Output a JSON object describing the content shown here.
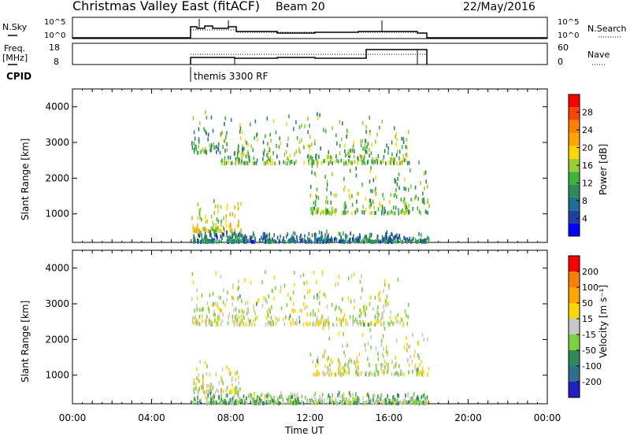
{
  "header": {
    "station": "Christmas Valley East (fitACF)",
    "beam": "Beam 20",
    "date": "22/May/2016"
  },
  "nsky_panel": {
    "left_label": "N.Sky",
    "right_label": "N.Search",
    "left_ticks": [
      "10^5",
      "10^0"
    ],
    "right_ticks": [
      "10^5",
      "10^0"
    ]
  },
  "freq_panel": {
    "left_label": "Freq.",
    "left_unit": "[MHz]",
    "right_label": "Nave",
    "left_ticks": [
      "18",
      "8"
    ],
    "right_ticks": [
      "60",
      "0"
    ]
  },
  "cpid": {
    "label": "CPID",
    "program": "themis 3300 RF"
  },
  "power_panel": {
    "ylabel": "Slant Range [km]",
    "yticks": [
      "4000",
      "3000",
      "2000",
      "1000"
    ],
    "colorbar_label": "Power [dB]",
    "colorbar_ticks": [
      "28",
      "24",
      "20",
      "16",
      "12",
      "8",
      "4"
    ],
    "colors": [
      "#0000ff",
      "#2040a0",
      "#1e6e96",
      "#2e8b57",
      "#3cb43c",
      "#9acd32",
      "#ffd700",
      "#ffa500",
      "#ff7f00",
      "#ff4500",
      "#ff0000"
    ]
  },
  "velocity_panel": {
    "ylabel": "Slant Range [km]",
    "yticks": [
      "4000",
      "3000",
      "2000",
      "1000"
    ],
    "colorbar_label": "Velocity [m s⁻¹]",
    "colorbar_ticks": [
      "200",
      "100",
      "50",
      "15",
      "-15",
      "-50",
      "-100",
      "-200"
    ],
    "colors": [
      "#2020c0",
      "#2e6e8e",
      "#2e8b57",
      "#7cd23c",
      "#c8c8c8",
      "#ffd700",
      "#ffa500",
      "#ff7f00",
      "#ff0000"
    ]
  },
  "x_axis": {
    "label": "Time UT",
    "ticks": [
      "00:00",
      "04:00",
      "08:00",
      "12:00",
      "16:00",
      "20:00",
      "00:00"
    ]
  },
  "chart_data": {
    "type": "heatmap",
    "title": "Christmas Valley East (fitACF) Beam 20 22/May/2016",
    "xlabel": "Time UT",
    "ylabel": "Slant Range [km]",
    "xlim": [
      "00:00",
      "24:00"
    ],
    "ylim": [
      200,
      4500
    ],
    "data_window": [
      "06:00",
      "18:00"
    ],
    "series": [
      {
        "name": "Power [dB]",
        "clim": [
          0,
          32
        ],
        "echo_regions": [
          {
            "t": [
              "06:00",
              "07:30"
            ],
            "range_km": [
              2700,
              3900
            ],
            "value": 12
          },
          {
            "t": [
              "07:30",
              "17:00"
            ],
            "range_km": [
              2400,
              3800
            ],
            "value": 14
          },
          {
            "t": [
              "06:00",
              "08:30"
            ],
            "range_km": [
              500,
              1400
            ],
            "value": 18
          },
          {
            "t": [
              "12:00",
              "18:00"
            ],
            "range_km": [
              1000,
              2600
            ],
            "value": 14
          },
          {
            "t": [
              "06:00",
              "18:00"
            ],
            "range_km": [
              200,
              500
            ],
            "value": 8
          }
        ]
      },
      {
        "name": "Velocity [m s⁻¹]",
        "clim": [
          -250,
          250
        ],
        "echo_regions": [
          {
            "t": [
              "06:00",
              "17:00"
            ],
            "range_km": [
              2400,
              3900
            ],
            "value": 0
          },
          {
            "t": [
              "06:00",
              "08:30"
            ],
            "range_km": [
              500,
              1400
            ],
            "value": 20
          },
          {
            "t": [
              "12:00",
              "18:00"
            ],
            "range_km": [
              1000,
              2600
            ],
            "value": 0
          },
          {
            "t": [
              "06:00",
              "18:00"
            ],
            "range_km": [
              200,
              500
            ],
            "value": -50
          }
        ]
      }
    ]
  }
}
